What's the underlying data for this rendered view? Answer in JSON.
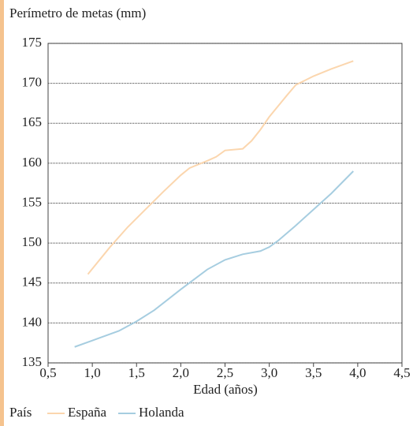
{
  "chart_data": {
    "type": "line",
    "title": "Perímetro de metas (mm)",
    "xlabel": "Edad (años)",
    "legend_title": "País",
    "xlim": [
      0.5,
      4.5
    ],
    "xticks": [
      {
        "value": 0.5,
        "label": "0,5"
      },
      {
        "value": 1.0,
        "label": "1,0"
      },
      {
        "value": 1.5,
        "label": "1,5"
      },
      {
        "value": 2.0,
        "label": "2,0"
      },
      {
        "value": 2.5,
        "label": "2,5"
      },
      {
        "value": 3.0,
        "label": "3,0"
      },
      {
        "value": 3.5,
        "label": "3,5"
      },
      {
        "value": 4.0,
        "label": "4,0"
      },
      {
        "value": 4.5,
        "label": "4,5"
      }
    ],
    "ylim": [
      135,
      175
    ],
    "yticks": [
      135,
      140,
      145,
      150,
      155,
      160,
      165,
      170,
      175
    ],
    "grid": true,
    "series": [
      {
        "name": "España",
        "color": "#fbd6ae",
        "x": [
          0.95,
          1.2,
          1.4,
          1.6,
          1.8,
          2.0,
          2.1,
          2.3,
          2.4,
          2.5,
          2.7,
          2.8,
          2.9,
          3.0,
          3.2,
          3.3,
          3.5,
          3.7,
          3.95
        ],
        "values": [
          146.1,
          149.5,
          152,
          154.2,
          156.4,
          158.5,
          159.4,
          160.3,
          160.8,
          161.6,
          161.8,
          162.8,
          164.2,
          165.8,
          168.5,
          169.8,
          170.9,
          171.8,
          172.8
        ]
      },
      {
        "name": "Holanda",
        "color": "#a6cde0",
        "x": [
          0.8,
          1.0,
          1.3,
          1.5,
          1.7,
          2.0,
          2.3,
          2.5,
          2.7,
          2.9,
          3.0,
          3.1,
          3.3,
          3.5,
          3.7,
          3.95
        ],
        "values": [
          137.0,
          137.8,
          139.0,
          140.2,
          141.6,
          144.2,
          146.7,
          147.9,
          148.6,
          149.0,
          149.5,
          150.3,
          152.2,
          154.2,
          156.2,
          159.0
        ]
      }
    ]
  }
}
